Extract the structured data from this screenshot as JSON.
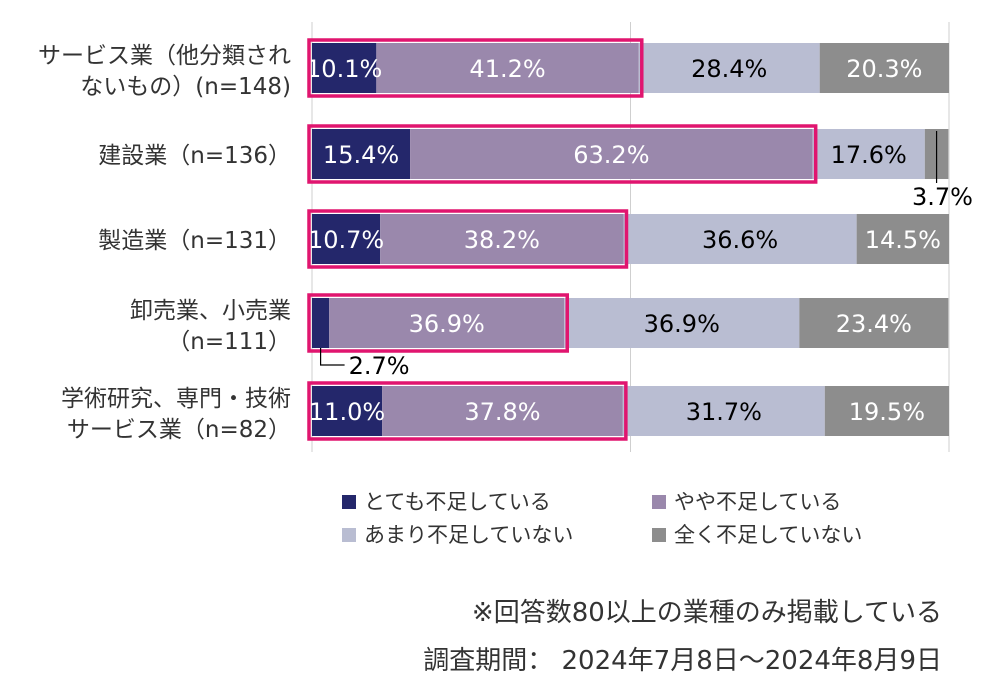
{
  "chart_data": {
    "type": "bar",
    "orientation": "horizontal",
    "stacked": true,
    "normalized": true,
    "xlim": [
      0,
      100
    ],
    "grid": true,
    "legend_position": "bottom",
    "categories": [
      [
        "サービス業（他分類され",
        "ないもの）(n=148)"
      ],
      [
        "建設業（n=136）"
      ],
      [
        "製造業（n=131）"
      ],
      [
        "卸売業、小売業",
        "（n=111）"
      ],
      [
        "学術研究、専門・技術",
        "サービス業（n=82）"
      ]
    ],
    "series": [
      {
        "name": "とても不足している",
        "color": "#24276b",
        "label_color": "#ffffff",
        "values": [
          10.1,
          15.4,
          10.7,
          2.7,
          11.0
        ]
      },
      {
        "name": "やや不足している",
        "color": "#9a88ac",
        "label_color": "#ffffff",
        "values": [
          41.2,
          63.2,
          38.2,
          36.9,
          37.8
        ]
      },
      {
        "name": "あまり不足していない",
        "color": "#b9bdd2",
        "label_color": "#000000",
        "values": [
          28.4,
          17.6,
          36.6,
          36.9,
          31.7
        ]
      },
      {
        "name": "全く不足していない",
        "color": "#8d8d8d",
        "label_color": "#ffffff",
        "values": [
          20.3,
          3.7,
          14.5,
          23.4,
          19.5
        ]
      }
    ],
    "highlight_color": "#e0156f",
    "highlight_series": [
      "とても不足している",
      "やや不足している"
    ],
    "external_labels": [
      {
        "category_index": 1,
        "series_index": 3,
        "text": "3.7%"
      },
      {
        "category_index": 3,
        "series_index": 0,
        "text": "2.7%"
      }
    ]
  },
  "notes": {
    "line1": "※回答数80以上の業種のみ掲載している",
    "line2": "調査期間： 2024年7月8日～2024年8月9日"
  }
}
